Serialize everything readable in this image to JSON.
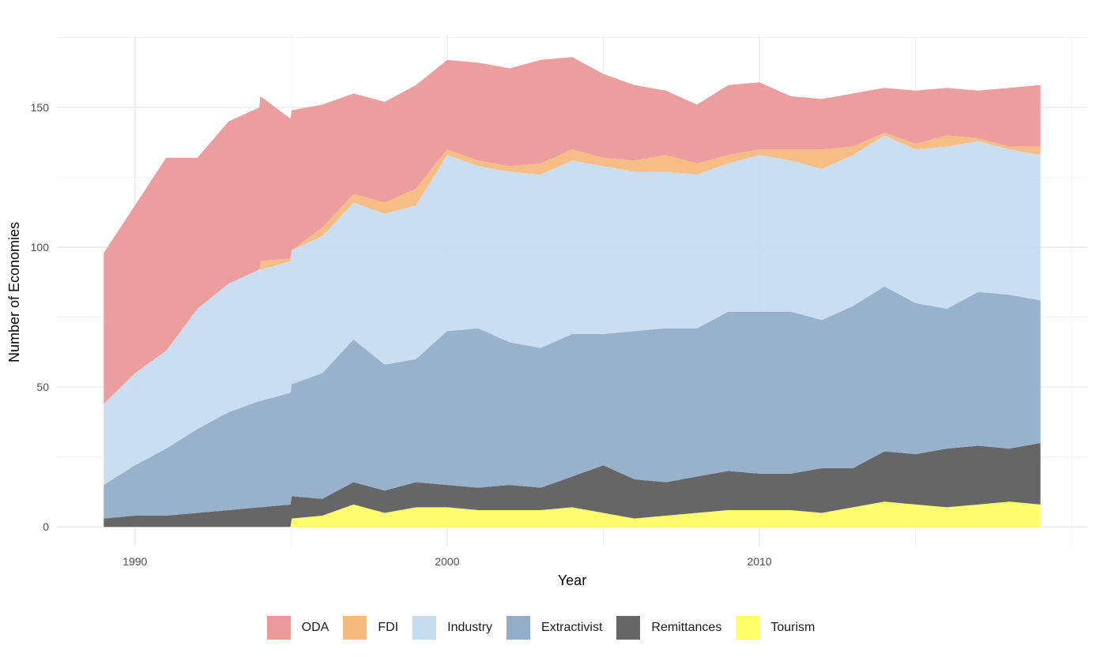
{
  "chart_data": {
    "type": "area",
    "stacked": true,
    "title": "",
    "xlabel": "Year",
    "ylabel": "Number of Economies",
    "xlim": [
      1987.5,
      2020.5
    ],
    "ylim": [
      -7,
      176
    ],
    "x_ticks": [
      1990,
      2000,
      2010
    ],
    "x_minor_ticks": [
      1995,
      2005,
      2015,
      2020
    ],
    "y_ticks": [
      0,
      50,
      100,
      150
    ],
    "y_minor_ticks": [
      25,
      75,
      125,
      175
    ],
    "grid": true,
    "legend_position": "bottom",
    "x": [
      1989,
      1990,
      1991,
      1992,
      1993,
      1994,
      1994,
      1995,
      1995,
      1996,
      1997,
      1998,
      1999,
      2000,
      2001,
      2002,
      2003,
      2004,
      2005,
      2006,
      2007,
      2008,
      2009,
      2010,
      2011,
      2012,
      2013,
      2014,
      2015,
      2016,
      2017,
      2018,
      2019
    ],
    "series": [
      {
        "name": "Tourism",
        "color": "#ffff66",
        "values": [
          0,
          0,
          0,
          0,
          0,
          0,
          0,
          0,
          3,
          4,
          8,
          5,
          7,
          7,
          6,
          6,
          6,
          7,
          5,
          3,
          4,
          5,
          6,
          6,
          6,
          5,
          7,
          9,
          8,
          7,
          8,
          9,
          8
        ]
      },
      {
        "name": "Remittances",
        "color": "#666666",
        "values": [
          3,
          4,
          4,
          5,
          6,
          7,
          7,
          8,
          8,
          6,
          8,
          8,
          9,
          8,
          8,
          9,
          8,
          11,
          17,
          14,
          12,
          13,
          14,
          13,
          13,
          16,
          14,
          18,
          18,
          21,
          21,
          19,
          22
        ]
      },
      {
        "name": "Extractivist",
        "color": "#94aec9",
        "values": [
          12,
          18,
          24,
          30,
          35,
          38,
          38,
          40,
          40,
          45,
          51,
          45,
          44,
          55,
          57,
          51,
          50,
          51,
          47,
          53,
          55,
          53,
          57,
          58,
          58,
          53,
          58,
          59,
          54,
          50,
          55,
          55,
          51
        ]
      },
      {
        "name": "Industry",
        "color": "#c6ddf0",
        "values": [
          29,
          33,
          35,
          43,
          46,
          47,
          47,
          47,
          48,
          49,
          49,
          54,
          55,
          63,
          58,
          61,
          62,
          62,
          60,
          57,
          56,
          55,
          53,
          56,
          54,
          54,
          54,
          54,
          55,
          58,
          54,
          52,
          52
        ]
      },
      {
        "name": "FDI",
        "color": "#f6bb7e",
        "values": [
          0,
          0,
          0,
          0,
          0,
          0,
          3,
          1,
          0,
          3,
          3,
          4,
          6,
          2,
          2,
          2,
          4,
          4,
          3,
          4,
          6,
          4,
          3,
          2,
          4,
          7,
          3,
          1,
          2,
          4,
          1,
          1,
          3
        ]
      },
      {
        "name": "ODA",
        "color": "#eb9999",
        "values": [
          54,
          60,
          69,
          54,
          58,
          58,
          59,
          50,
          50,
          44,
          36,
          36,
          37,
          32,
          35,
          35,
          37,
          33,
          30,
          27,
          23,
          21,
          25,
          24,
          19,
          18,
          19,
          16,
          19,
          17,
          17,
          21,
          22
        ]
      }
    ]
  },
  "legend": {
    "items": [
      {
        "label": "ODA",
        "color": "#eb9999"
      },
      {
        "label": "FDI",
        "color": "#f6bb7e"
      },
      {
        "label": "Industry",
        "color": "#c6ddf0"
      },
      {
        "label": "Extractivist",
        "color": "#94aec9"
      },
      {
        "label": "Remittances",
        "color": "#666666"
      },
      {
        "label": "Tourism",
        "color": "#ffff66"
      }
    ]
  }
}
